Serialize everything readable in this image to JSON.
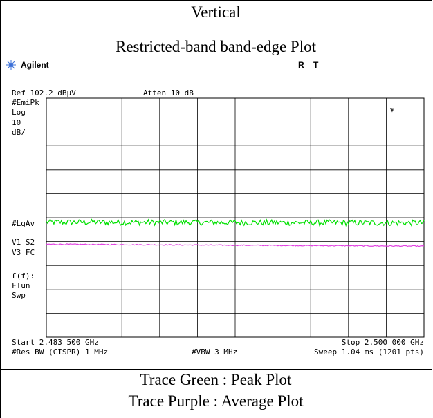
{
  "header": {
    "polarization": "Vertical",
    "plot_title": "Restricted-band band-edge Plot"
  },
  "analyzer": {
    "brand": "Agilent",
    "indicators": [
      "R",
      "T"
    ],
    "ref_level": "Ref 102.2 dBµV",
    "attenuation": "Atten 10 dB",
    "left_labels": {
      "detector": "#EmiPk",
      "scale_type": "Log",
      "scale_value": "10",
      "scale_unit": "dB/",
      "avg_label": "#LgAv",
      "v1s2": "V1  S2",
      "v3fc": "V3  FC",
      "ff": "£(f):",
      "ftun": "FTun",
      "swp": "Swp"
    },
    "marker_symbol": "*",
    "start_freq": "Start 2.483 500 GHz",
    "stop_freq": "Stop 2.500 000 GHz",
    "res_bw": "#Res BW (CISPR) 1 MHz",
    "vbw": "#VBW 3 MHz",
    "sweep": "Sweep 1.04 ms (1201 pts)"
  },
  "chart_data": {
    "type": "line",
    "x_start_ghz": 2.4835,
    "x_stop_ghz": 2.5,
    "y_ref_dbuv": 102.2,
    "y_div_db": 10,
    "y_divisions": 10,
    "x_divisions": 10,
    "grid": true,
    "series": [
      {
        "color": "#00e000",
        "level_start_dbuv": 50.3,
        "level_end_dbuv": 50.0,
        "noise_db": 1.2
      },
      {
        "color": "#e040e0",
        "level_start_dbuv": 41.1,
        "level_end_dbuv": 40.3,
        "noise_db": 0.2
      }
    ]
  },
  "footer": {
    "green_note": "Trace Green : Peak Plot",
    "purple_note": "Trace Purple : Average Plot"
  }
}
